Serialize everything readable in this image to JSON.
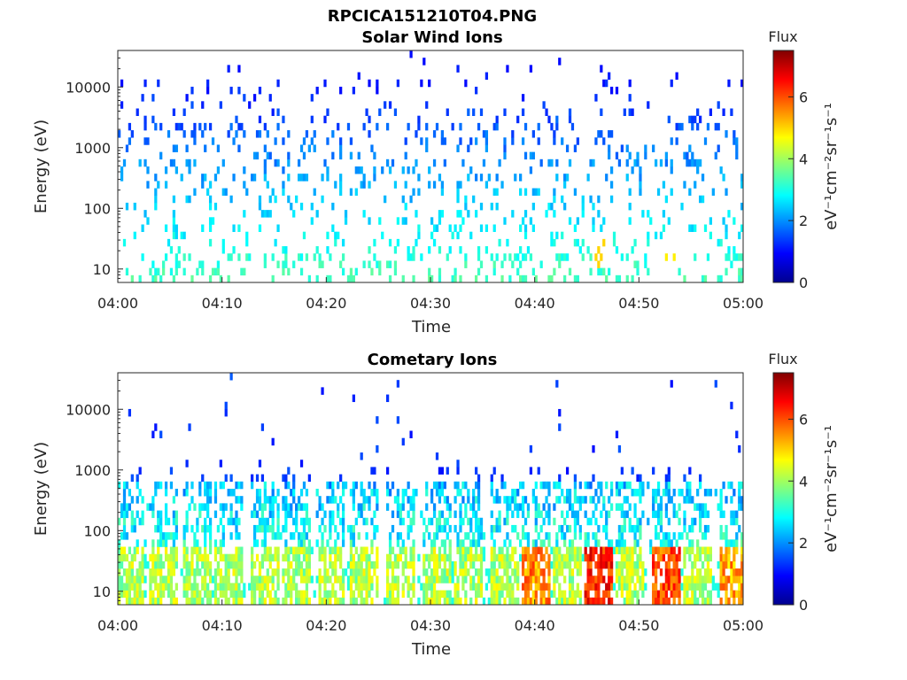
{
  "figure_title": "RPCICA151210T04.PNG",
  "colors": {
    "axis": "#262626",
    "colormap": [
      "#00008f",
      "#0000ff",
      "#00ffff",
      "#ffff00",
      "#ff0000",
      "#800000"
    ]
  },
  "chart_data": [
    {
      "type": "heatmap",
      "title": "Solar Wind Ions",
      "xlabel": "Time",
      "ylabel": "Energy (eV)",
      "x_ticks": [
        "04:00",
        "04:10",
        "04:20",
        "04:30",
        "04:40",
        "04:50",
        "05:00"
      ],
      "xlim_minutes": [
        0,
        60
      ],
      "y_scale": "log",
      "ylim": [
        6,
        40000
      ],
      "y_ticks": [
        10,
        100,
        1000,
        10000
      ],
      "colorbar": {
        "title": "Flux",
        "label": "eV⁻¹cm⁻²sr⁻¹s⁻¹",
        "ticks": [
          0,
          2,
          4,
          6
        ],
        "range": [
          0,
          7.5
        ]
      },
      "notable_flux_events": [
        {
          "time": "04:46",
          "energy_range_eV": [
            10,
            30
          ],
          "flux": 5.0
        },
        {
          "time": "04:53",
          "energy_range_eV": [
            10,
            30
          ],
          "flux": 4.8
        }
      ],
      "typical_flux": {
        "low_energy_10eV": 3.2,
        "mid_energy_100eV": 2.4,
        "high_energy_10000eV": 1.2
      }
    },
    {
      "type": "heatmap",
      "title": "Cometary Ions",
      "xlabel": "Time",
      "ylabel": "Energy (eV)",
      "x_ticks": [
        "04:00",
        "04:10",
        "04:20",
        "04:30",
        "04:40",
        "04:50",
        "05:00"
      ],
      "xlim_minutes": [
        0,
        60
      ],
      "y_scale": "log",
      "ylim": [
        6,
        40000
      ],
      "y_ticks": [
        10,
        100,
        1000,
        10000
      ],
      "colorbar": {
        "title": "Flux",
        "label": "eV⁻¹cm⁻²sr⁻¹s⁻¹",
        "ticks": [
          0,
          2,
          4,
          6
        ],
        "range": [
          0,
          7.5
        ]
      },
      "periodic_bursts_minutes": [
        1,
        4.3,
        7.5,
        10.5,
        14,
        17,
        20.3,
        23.5,
        27,
        30.5,
        33.5,
        37,
        40,
        43,
        46,
        49,
        52.5,
        55.5,
        59
      ],
      "burst_peak_flux": {
        "04:40": 6.0,
        "04:46": 6.8,
        "04:53": 6.5,
        "04:59": 5.8
      }
    }
  ]
}
